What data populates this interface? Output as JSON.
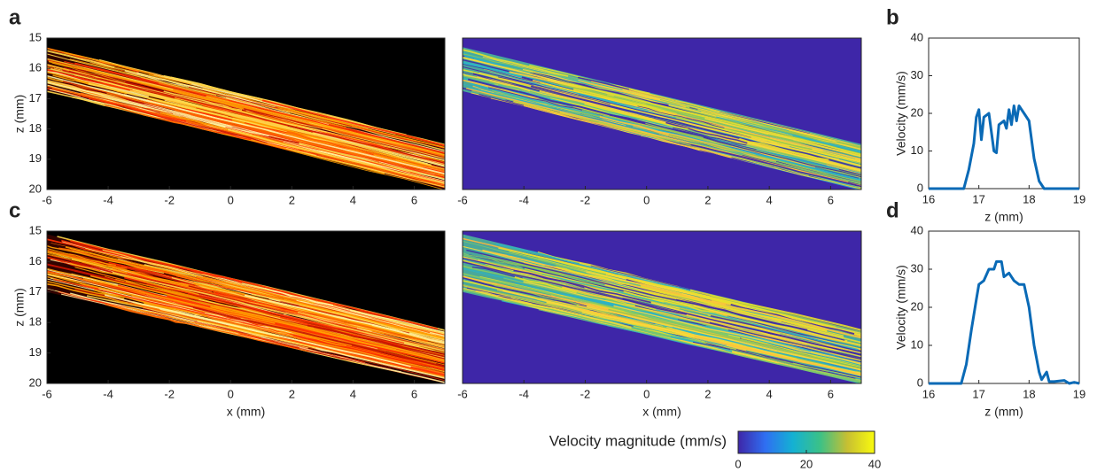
{
  "chart_data": [
    {
      "type": "image",
      "panel": "a",
      "colormap": "hot",
      "ylabel": "z (mm)",
      "xlim": [
        -6,
        7
      ],
      "ylim": [
        15,
        20
      ],
      "y_reversed": true,
      "xticks": [
        -6,
        -4,
        -2,
        0,
        2,
        4,
        6
      ],
      "yticks": [
        15,
        16,
        17,
        18,
        19,
        20
      ]
    },
    {
      "type": "image",
      "colormap": "parula",
      "xlim": [
        -6,
        7
      ],
      "xticks": [
        -6,
        -4,
        -2,
        0,
        2,
        4,
        6
      ]
    },
    {
      "type": "line",
      "panel": "b",
      "xlabel": "z (mm)",
      "ylabel": "Velocity (mm/s)",
      "xlim": [
        16,
        19
      ],
      "ylim": [
        0,
        40
      ],
      "xticks": [
        16,
        17,
        18,
        19
      ],
      "yticks": [
        0,
        10,
        20,
        30,
        40
      ],
      "x": [
        16,
        16.5,
        16.7,
        16.8,
        16.9,
        16.95,
        17.0,
        17.05,
        17.1,
        17.2,
        17.3,
        17.35,
        17.4,
        17.5,
        17.55,
        17.6,
        17.65,
        17.7,
        17.75,
        17.8,
        17.9,
        18.0,
        18.1,
        18.2,
        18.3,
        19
      ],
      "series": [
        {
          "color": "#0a6ab6",
          "values": [
            0,
            0,
            0,
            5,
            12,
            19,
            21,
            13,
            19,
            20,
            10,
            9.5,
            17,
            18,
            16,
            21,
            17,
            22,
            18,
            22,
            20,
            18,
            8,
            2,
            0,
            0
          ]
        }
      ]
    },
    {
      "type": "image",
      "panel": "c",
      "colormap": "hot",
      "ylabel": "z (mm)",
      "xlabel": "x (mm)",
      "xlim": [
        -6,
        7
      ],
      "ylim": [
        15,
        20
      ],
      "y_reversed": true,
      "xticks": [
        -6,
        -4,
        -2,
        0,
        2,
        4,
        6
      ],
      "yticks": [
        15,
        16,
        17,
        18,
        19,
        20
      ]
    },
    {
      "type": "image",
      "colormap": "parula",
      "xlabel": "x (mm)",
      "xlim": [
        -6,
        7
      ],
      "xticks": [
        -6,
        -4,
        -2,
        0,
        2,
        4,
        6
      ]
    },
    {
      "type": "line",
      "panel": "d",
      "xlabel": "z (mm)",
      "ylabel": "Velocity (mm/s)",
      "xlim": [
        16,
        19
      ],
      "ylim": [
        0,
        40
      ],
      "xticks": [
        16,
        17,
        18,
        19
      ],
      "yticks": [
        0,
        10,
        20,
        30,
        40
      ],
      "x": [
        16,
        16.5,
        16.65,
        16.75,
        16.85,
        16.95,
        17.0,
        17.1,
        17.2,
        17.3,
        17.35,
        17.45,
        17.5,
        17.6,
        17.7,
        17.8,
        17.9,
        18.0,
        18.1,
        18.2,
        18.25,
        18.35,
        18.4,
        18.5,
        18.7,
        18.8,
        18.9,
        19
      ],
      "series": [
        {
          "color": "#0a6ab6",
          "values": [
            0,
            0,
            0,
            5,
            14,
            22,
            26,
            27,
            30,
            30,
            32,
            32,
            28,
            29,
            27,
            26,
            26,
            20,
            10,
            3,
            1,
            3,
            0.5,
            0.5,
            0.8,
            0,
            0.3,
            0
          ]
        }
      ]
    }
  ],
  "colorbar": {
    "label": "Velocity magnitude (mm/s)",
    "lim": [
      0,
      40
    ],
    "ticks": [
      0,
      20,
      40
    ]
  }
}
